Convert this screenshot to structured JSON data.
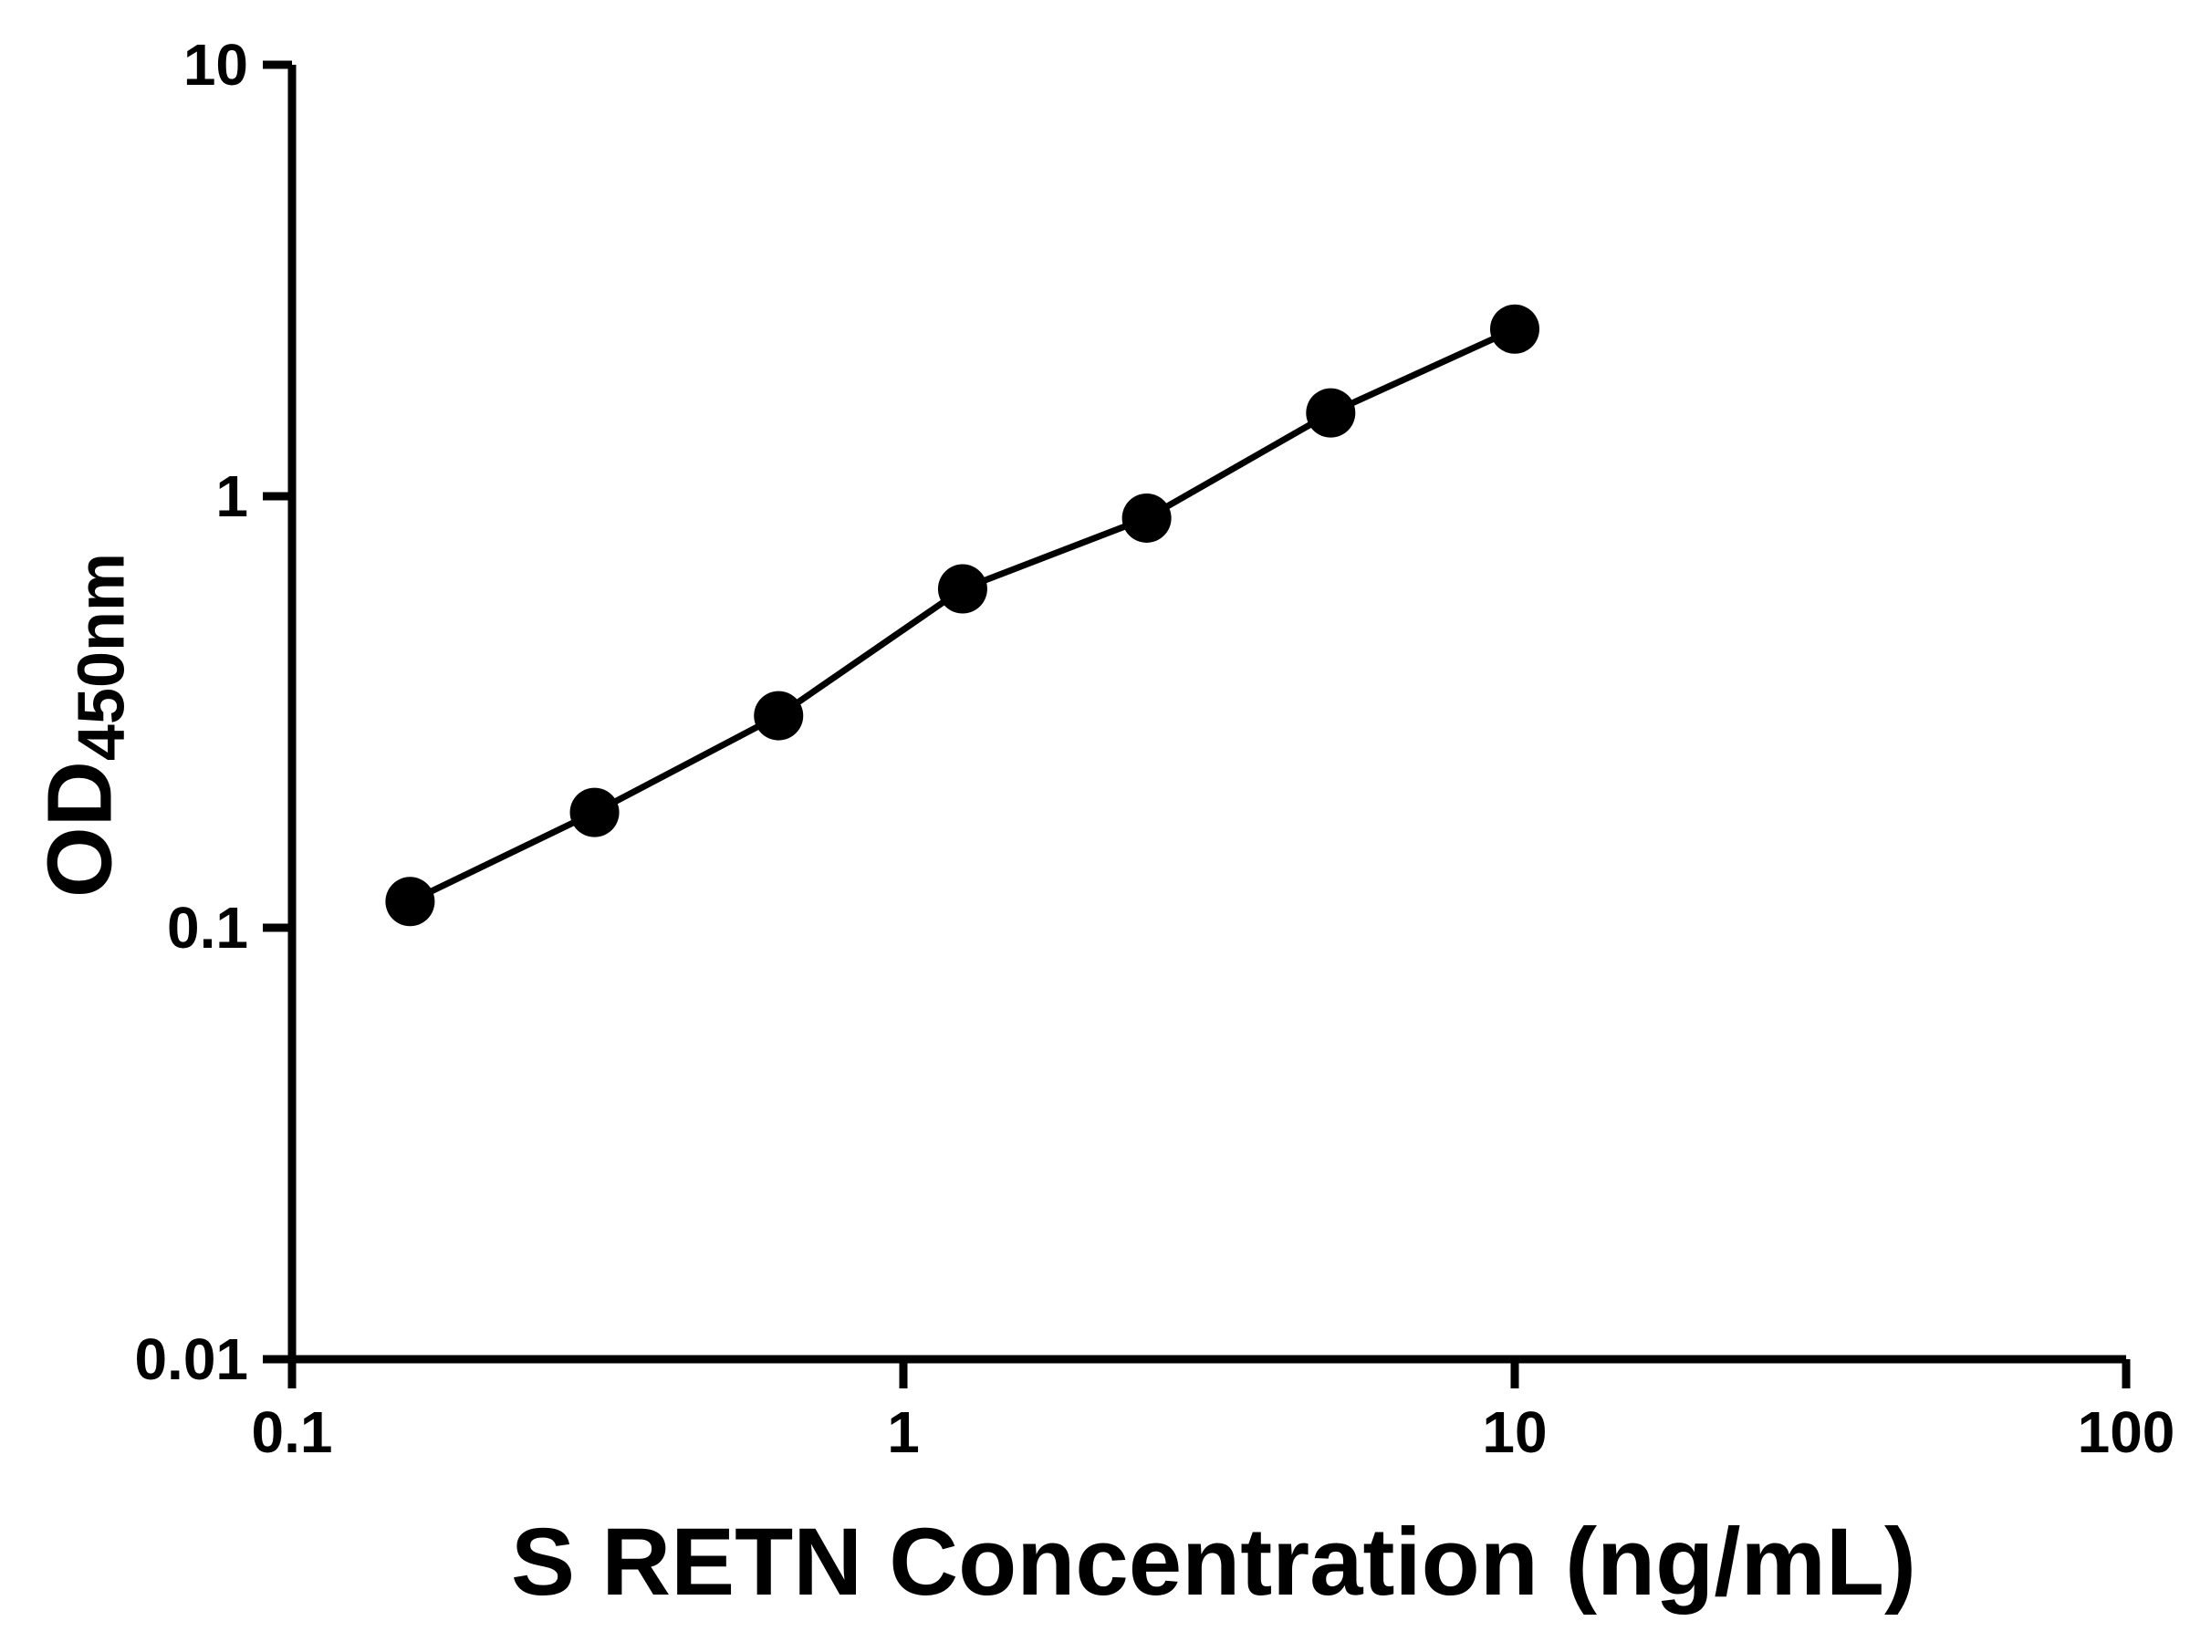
{
  "chart_data": {
    "type": "scatter",
    "title": "",
    "xlabel": "S RETN Concentration (ng/mL)",
    "ylabel_main": "OD",
    "ylabel_sub": "450nm",
    "x_scale": "log",
    "y_scale": "log",
    "xlim": [
      0.1,
      100
    ],
    "ylim": [
      0.01,
      10
    ],
    "grid": false,
    "legend": null,
    "line_color": "#000000",
    "marker_color": "#000000",
    "x": [
      0.156,
      0.3125,
      0.625,
      1.25,
      2.5,
      5,
      10
    ],
    "y": [
      0.115,
      0.185,
      0.31,
      0.61,
      0.89,
      1.56,
      2.44
    ],
    "x_ticks": {
      "values": [
        0.1,
        1,
        10,
        100
      ],
      "labels": [
        "0.1",
        "1",
        "10",
        "100"
      ]
    },
    "y_ticks": {
      "values": [
        0.01,
        0.1,
        1,
        10
      ],
      "labels": [
        "0.01",
        "0.1",
        "1",
        "10"
      ]
    }
  }
}
